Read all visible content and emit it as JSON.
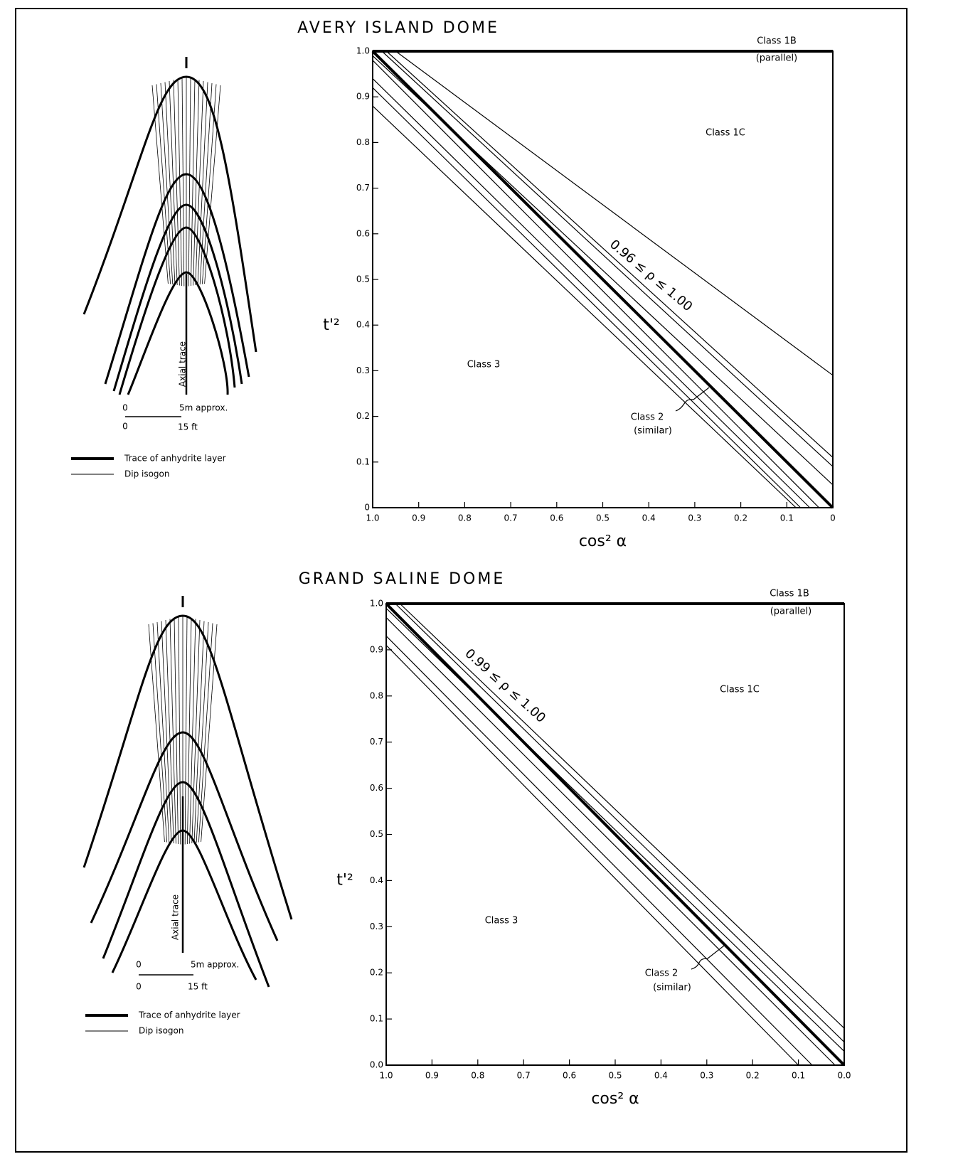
{
  "chart_data": [
    {
      "type": "line",
      "title": "AVERY ISLAND DOME",
      "x_label": "cos² α",
      "y_label": "t'²",
      "xlim": [
        1,
        0
      ],
      "ylim": [
        0,
        1
      ],
      "xticks": [
        {
          "value": 1,
          "label": "1.0"
        },
        0.9,
        0.8,
        0.7,
        0.6,
        0.5,
        0.4,
        0.3,
        0.2,
        0.1,
        0
      ],
      "yticks": [
        0,
        0.1,
        0.2,
        0.3,
        0.4,
        0.5,
        0.6,
        0.7,
        0.8,
        0.9,
        {
          "value": 1,
          "label": "1.0"
        }
      ],
      "series": [
        {
          "color": "#000000",
          "thick": true,
          "x": [
            1,
            0
          ],
          "values": [
            1,
            1
          ]
        },
        {
          "color": "#000000",
          "thick": true,
          "x": [
            1,
            0
          ],
          "values": [
            1,
            0
          ]
        },
        {
          "color": "#000000",
          "thick": false,
          "x": [
            0.95,
            0
          ],
          "values": [
            1,
            0.29
          ]
        },
        {
          "color": "#000000",
          "thick": false,
          "x": [
            0.97,
            0
          ],
          "values": [
            1,
            0.11
          ]
        },
        {
          "color": "#000000",
          "thick": false,
          "x": [
            0.98,
            0
          ],
          "values": [
            1,
            0.09
          ]
        },
        {
          "color": "#000000",
          "thick": false,
          "x": [
            1,
            0
          ],
          "values": [
            0.99,
            0.05
          ]
        },
        {
          "color": "#000000",
          "thick": false,
          "x": [
            1,
            0.03
          ],
          "values": [
            0.98,
            0
          ]
        },
        {
          "color": "#000000",
          "thick": false,
          "x": [
            1,
            0.05
          ],
          "values": [
            0.94,
            0
          ]
        },
        {
          "color": "#000000",
          "thick": false,
          "x": [
            1,
            0.07
          ],
          "values": [
            0.92,
            0
          ]
        },
        {
          "color": "#000000",
          "thick": false,
          "x": [
            1,
            0.08
          ],
          "values": [
            0.88,
            0
          ]
        }
      ],
      "annotations": [
        "Class 1B",
        "(parallel)",
        "Class 1C",
        "0.96 ≤ ρ ≤ 1.00",
        "Class 3",
        "Class 2",
        "(similar)"
      ]
    },
    {
      "type": "line",
      "title": "GRAND SALINE DOME",
      "x_label": "cos² α",
      "y_label": "t'²",
      "xlim": [
        1,
        0
      ],
      "ylim": [
        0,
        1
      ],
      "xticks": [
        {
          "value": 1,
          "label": "1.0"
        },
        0.9,
        0.8,
        0.7,
        0.6,
        0.5,
        0.4,
        0.3,
        0.2,
        0.1,
        {
          "value": 0,
          "label": "0.0"
        }
      ],
      "yticks": [
        {
          "value": 0,
          "label": "0.0"
        },
        0.1,
        0.2,
        0.3,
        0.4,
        0.5,
        0.6,
        0.7,
        0.8,
        0.9,
        {
          "value": 1,
          "label": "1.0"
        }
      ],
      "series": [
        {
          "color": "#000000",
          "thick": true,
          "x": [
            1,
            0
          ],
          "values": [
            1,
            1
          ]
        },
        {
          "color": "#000000",
          "thick": true,
          "x": [
            1,
            0
          ],
          "values": [
            1,
            0
          ]
        },
        {
          "color": "#000000",
          "thick": false,
          "x": [
            0.97,
            0
          ],
          "values": [
            1,
            0.08
          ]
        },
        {
          "color": "#000000",
          "thick": false,
          "x": [
            0.98,
            0
          ],
          "values": [
            1,
            0.05
          ]
        },
        {
          "color": "#000000",
          "thick": false,
          "x": [
            1,
            0
          ],
          "values": [
            0.99,
            0.03
          ]
        },
        {
          "color": "#000000",
          "thick": false,
          "x": [
            1,
            0.02
          ],
          "values": [
            0.97,
            0
          ]
        },
        {
          "color": "#000000",
          "thick": false,
          "x": [
            1,
            0.07
          ],
          "values": [
            0.93,
            0
          ]
        },
        {
          "color": "#000000",
          "thick": false,
          "x": [
            1,
            0.1
          ],
          "values": [
            0.91,
            0
          ]
        }
      ],
      "annotations": [
        "Class 1B",
        "(parallel)",
        "Class 1C",
        "0.99 ≤ ρ ≤ 1.00",
        "Class 3",
        "Class 2",
        "(similar)"
      ]
    }
  ],
  "diagrams": [
    {
      "axial_trace": "Axial trace",
      "scale": [
        "0",
        "5m approx.",
        "0",
        "15 ft"
      ],
      "legend": [
        "Trace of anhydrite layer",
        "Dip isogon"
      ]
    },
    {
      "axial_trace": "Axial trace",
      "scale": [
        "0",
        "5m approx.",
        "0",
        "15 ft"
      ],
      "legend": [
        "Trace of anhydrite layer",
        "Dip isogon"
      ]
    }
  ]
}
